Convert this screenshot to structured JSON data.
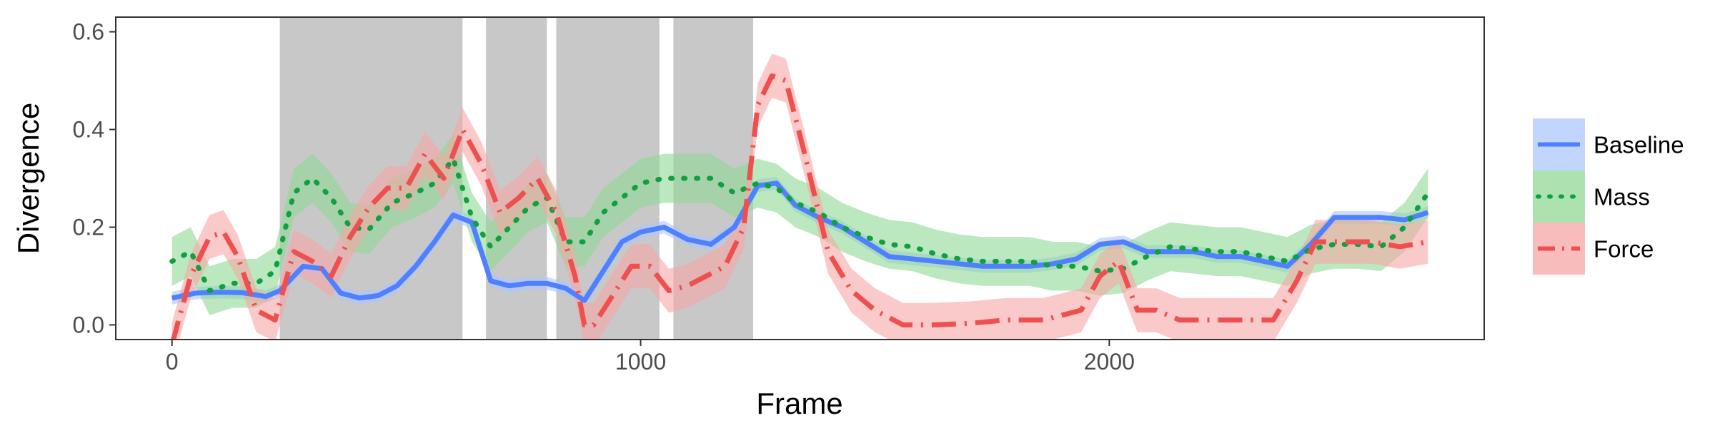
{
  "chart_data": {
    "type": "line",
    "title": "",
    "xlabel": "Frame",
    "ylabel": "Divergence",
    "xlim": [
      -120,
      2800
    ],
    "ylim": [
      -0.03,
      0.63
    ],
    "x_ticks": [
      0,
      1000,
      2000
    ],
    "x_tick_labels": [
      "0",
      "1000",
      "2000"
    ],
    "y_ticks": [
      0.0,
      0.2,
      0.4,
      0.6
    ],
    "y_tick_labels": [
      "0.0",
      "0.2",
      "0.4",
      "0.6"
    ],
    "grid": false,
    "legend_position": "right",
    "shaded_regions": [
      {
        "x_start": 230,
        "x_end": 620
      },
      {
        "x_start": 670,
        "x_end": 800
      },
      {
        "x_start": 820,
        "x_end": 1040
      },
      {
        "x_start": 1070,
        "x_end": 1240
      }
    ],
    "series": [
      {
        "name": "Baseline",
        "color": "#4f81ff",
        "band_color": "#aec7ff",
        "line_style": "solid",
        "x": [
          0,
          50,
          100,
          150,
          200,
          230,
          280,
          320,
          360,
          400,
          440,
          480,
          520,
          560,
          600,
          640,
          680,
          720,
          760,
          800,
          840,
          880,
          920,
          960,
          1000,
          1050,
          1100,
          1150,
          1200,
          1250,
          1290,
          1330,
          1380,
          1430,
          1480,
          1530,
          1580,
          1630,
          1680,
          1730,
          1780,
          1830,
          1880,
          1930,
          1980,
          2030,
          2080,
          2130,
          2180,
          2230,
          2280,
          2330,
          2380,
          2430,
          2480,
          2530,
          2580,
          2630,
          2680
        ],
        "y": [
          0.055,
          0.065,
          0.067,
          0.066,
          0.058,
          0.07,
          0.12,
          0.115,
          0.065,
          0.055,
          0.06,
          0.08,
          0.12,
          0.17,
          0.225,
          0.21,
          0.09,
          0.08,
          0.085,
          0.085,
          0.075,
          0.05,
          0.11,
          0.17,
          0.19,
          0.2,
          0.175,
          0.165,
          0.2,
          0.285,
          0.29,
          0.245,
          0.22,
          0.2,
          0.17,
          0.14,
          0.135,
          0.13,
          0.125,
          0.12,
          0.12,
          0.12,
          0.125,
          0.135,
          0.165,
          0.17,
          0.15,
          0.15,
          0.15,
          0.14,
          0.14,
          0.13,
          0.12,
          0.165,
          0.22,
          0.22,
          0.22,
          0.215,
          0.23
        ],
        "band": 0.013
      },
      {
        "name": "Mass",
        "color": "#10a040",
        "band_color": "#8fd895",
        "line_style": "dotted",
        "x": [
          0,
          40,
          80,
          130,
          180,
          220,
          260,
          300,
          340,
          380,
          420,
          470,
          520,
          560,
          600,
          640,
          680,
          720,
          760,
          800,
          840,
          880,
          920,
          960,
          1000,
          1050,
          1100,
          1150,
          1200,
          1250,
          1290,
          1330,
          1380,
          1430,
          1480,
          1530,
          1580,
          1630,
          1680,
          1730,
          1780,
          1830,
          1880,
          1930,
          1980,
          2030,
          2080,
          2130,
          2180,
          2230,
          2280,
          2330,
          2380,
          2430,
          2480,
          2530,
          2580,
          2630,
          2680
        ],
        "y": [
          0.13,
          0.15,
          0.07,
          0.085,
          0.085,
          0.11,
          0.27,
          0.3,
          0.26,
          0.2,
          0.195,
          0.25,
          0.27,
          0.29,
          0.34,
          0.22,
          0.16,
          0.2,
          0.24,
          0.26,
          0.17,
          0.17,
          0.23,
          0.26,
          0.29,
          0.3,
          0.3,
          0.3,
          0.27,
          0.29,
          0.28,
          0.25,
          0.23,
          0.2,
          0.18,
          0.165,
          0.16,
          0.145,
          0.135,
          0.13,
          0.13,
          0.13,
          0.12,
          0.12,
          0.11,
          0.115,
          0.14,
          0.16,
          0.155,
          0.15,
          0.15,
          0.14,
          0.13,
          0.155,
          0.165,
          0.165,
          0.16,
          0.2,
          0.27
        ],
        "band": 0.05
      },
      {
        "name": "Force",
        "color": "#ee5050",
        "band_color": "#f7a6a6",
        "line_style": "dashdot",
        "x": [
          0,
          40,
          80,
          110,
          140,
          180,
          220,
          260,
          300,
          340,
          380,
          420,
          460,
          500,
          540,
          580,
          620,
          660,
          700,
          740,
          780,
          820,
          860,
          880,
          900,
          940,
          980,
          1020,
          1060,
          1100,
          1140,
          1180,
          1220,
          1250,
          1280,
          1310,
          1350,
          1400,
          1450,
          1500,
          1560,
          1620,
          1700,
          1780,
          1860,
          1940,
          1980,
          2020,
          2060,
          2100,
          2150,
          2200,
          2250,
          2300,
          2350,
          2400,
          2440,
          2500,
          2560,
          2620,
          2680
        ],
        "y": [
          -0.04,
          0.1,
          0.18,
          0.19,
          0.14,
          0.03,
          0.01,
          0.15,
          0.13,
          0.1,
          0.18,
          0.24,
          0.28,
          0.28,
          0.35,
          0.3,
          0.4,
          0.33,
          0.23,
          0.26,
          0.3,
          0.23,
          0.1,
          0.0,
          0.0,
          0.06,
          0.12,
          0.12,
          0.07,
          0.08,
          0.1,
          0.12,
          0.2,
          0.45,
          0.51,
          0.5,
          0.35,
          0.15,
          0.07,
          0.03,
          0.0,
          0.0,
          0.003,
          0.01,
          0.01,
          0.03,
          0.1,
          0.13,
          0.03,
          0.03,
          0.01,
          0.01,
          0.01,
          0.01,
          0.01,
          0.09,
          0.17,
          0.17,
          0.17,
          0.16,
          0.17
        ],
        "band": 0.045
      }
    ]
  }
}
